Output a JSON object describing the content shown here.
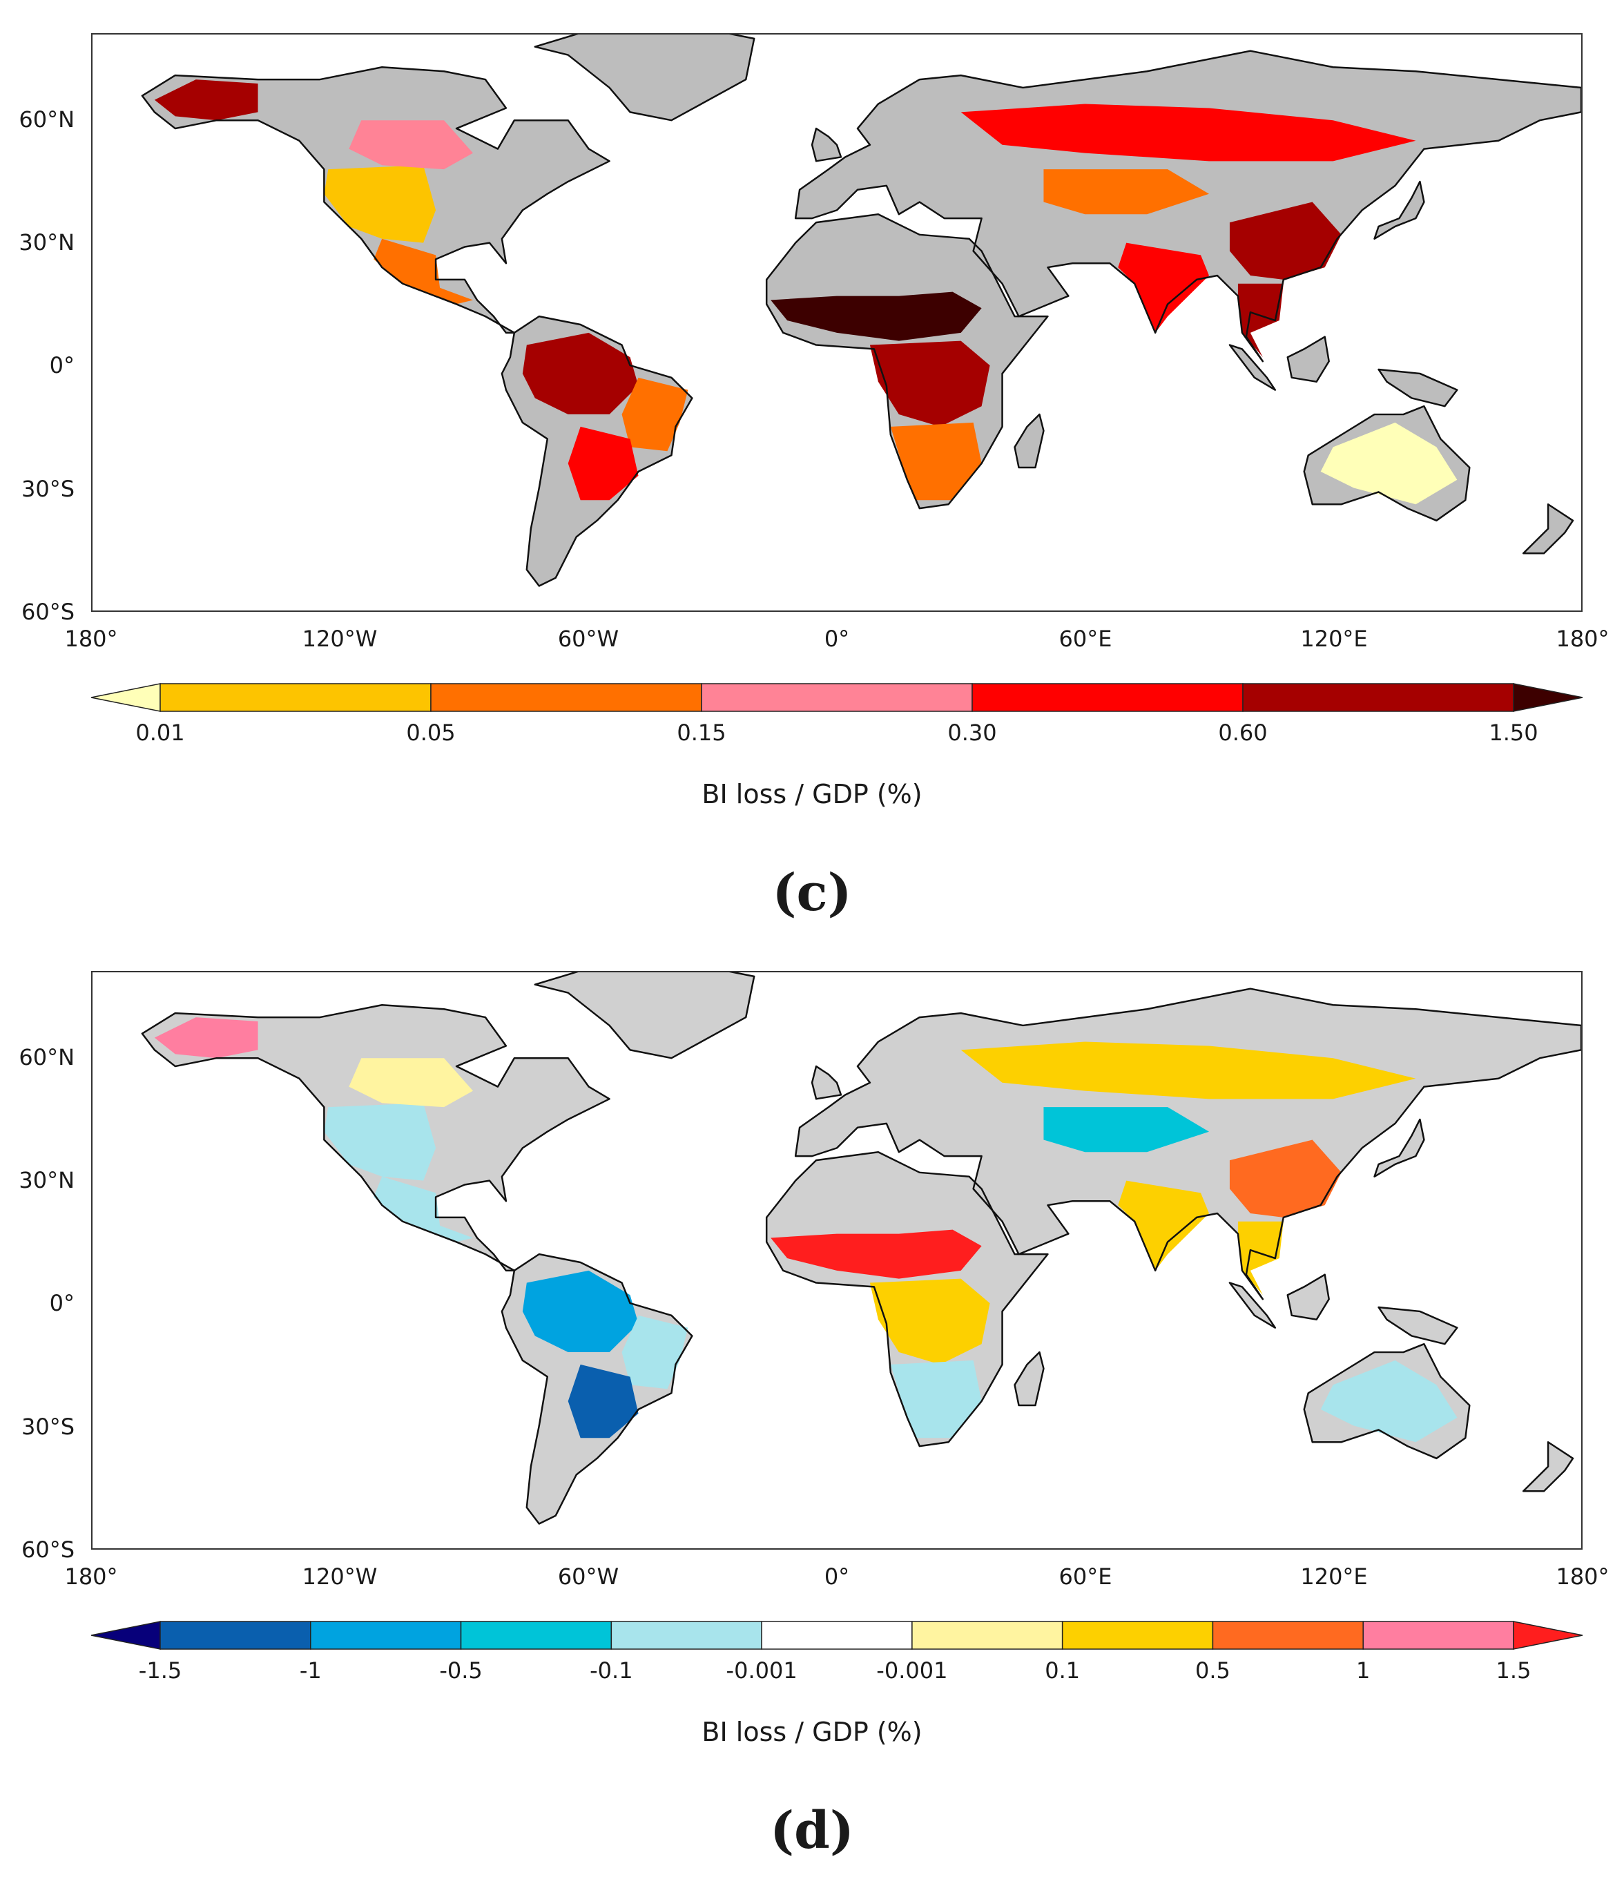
{
  "panels": [
    {
      "id": "c",
      "letter": "(c)",
      "colorbar_label": "BI loss / GDP (%)",
      "colorbar_ticks": [
        "0.01",
        "0.05",
        "0.15",
        "0.30",
        "0.60",
        "1.50"
      ],
      "colors": {
        "under": "#ffffb8",
        "bins": [
          "#fdc400",
          "#ff7000",
          "#ff8396",
          "#ff0000",
          "#a50000"
        ],
        "over": "#3d0000",
        "no_data": "#bdbdbd"
      },
      "regions": [
        {
          "name": "alaska",
          "bin": 4
        },
        {
          "name": "western-usa",
          "bin": 0
        },
        {
          "name": "central-canada",
          "bin": 2
        },
        {
          "name": "mexico",
          "bin": 1
        },
        {
          "name": "amazon",
          "bin": 4
        },
        {
          "name": "eastern-brazil",
          "bin": 1
        },
        {
          "name": "la-plata",
          "bin": 3
        },
        {
          "name": "sahel",
          "bin": "over"
        },
        {
          "name": "central-africa",
          "bin": 4
        },
        {
          "name": "southern-africa",
          "bin": 1
        },
        {
          "name": "russia",
          "bin": 3
        },
        {
          "name": "central-asia",
          "bin": 1
        },
        {
          "name": "india",
          "bin": 3
        },
        {
          "name": "china",
          "bin": 4
        },
        {
          "name": "southeast-asia",
          "bin": 4
        },
        {
          "name": "australia",
          "bin": "under"
        }
      ]
    },
    {
      "id": "d",
      "letter": "(d)",
      "colorbar_label": "BI loss / GDP (%)",
      "colorbar_ticks": [
        "-1.5",
        "-1",
        "-0.5",
        "-0.1",
        "-0.001",
        "-0.001",
        "0.1",
        "0.5",
        "1",
        "1.5"
      ],
      "colors": {
        "under": "#07007a",
        "bins": [
          "#0a5fae",
          "#00a3e0",
          "#00c4d8",
          "#a8e4ec",
          "#ffffff",
          "#fff4a0",
          "#fdd000",
          "#ff6a20",
          "#ff7ea0"
        ],
        "over": "#ff1e1e",
        "no_data": "#d0d0d0"
      },
      "regions": [
        {
          "name": "alaska",
          "bin": 8
        },
        {
          "name": "western-usa",
          "bin": 3
        },
        {
          "name": "central-canada",
          "bin": 5
        },
        {
          "name": "mexico",
          "bin": 3
        },
        {
          "name": "amazon",
          "bin": 1
        },
        {
          "name": "eastern-brazil",
          "bin": 3
        },
        {
          "name": "la-plata",
          "bin": 0
        },
        {
          "name": "sahel",
          "bin": "over"
        },
        {
          "name": "central-africa",
          "bin": 6
        },
        {
          "name": "southern-africa",
          "bin": 3
        },
        {
          "name": "russia",
          "bin": 6
        },
        {
          "name": "central-asia",
          "bin": 2
        },
        {
          "name": "india",
          "bin": 6
        },
        {
          "name": "china",
          "bin": 7
        },
        {
          "name": "southeast-asia",
          "bin": 6
        },
        {
          "name": "australia",
          "bin": 3
        }
      ]
    }
  ],
  "axes": {
    "lat_labels": [
      "60°N",
      "30°N",
      "0°",
      "30°S",
      "60°S"
    ],
    "lat_values": [
      60,
      30,
      0,
      -30,
      -60
    ],
    "lon_labels": [
      "180°",
      "120°W",
      "60°W",
      "0°",
      "60°E",
      "120°E",
      "180°"
    ],
    "lon_values": [
      -180,
      -120,
      -60,
      0,
      60,
      120,
      180
    ],
    "lat_range": [
      -60,
      81
    ],
    "lon_range": [
      -180,
      180
    ]
  }
}
